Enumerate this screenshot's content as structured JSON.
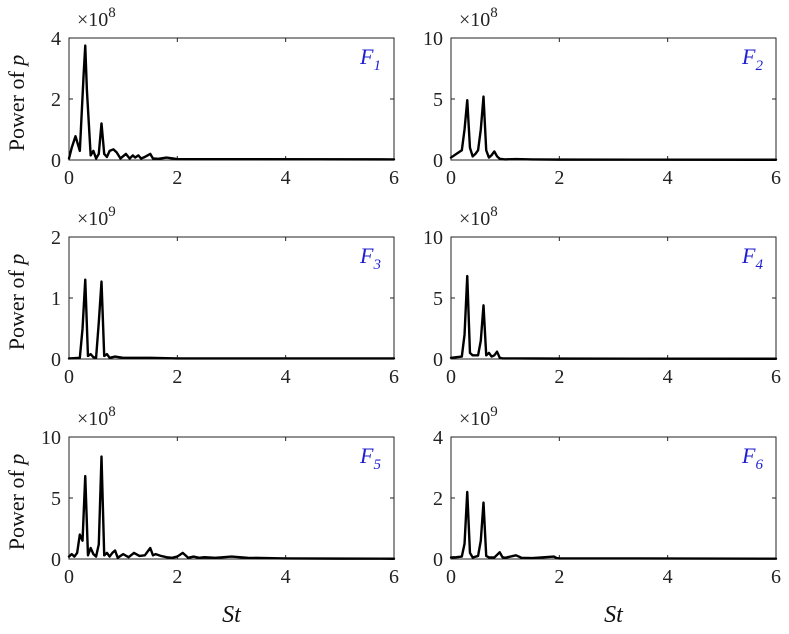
{
  "colors": {
    "line": "#000000",
    "axis": "#222222",
    "panel_label": "#1f1fd0"
  },
  "chart_data": [
    {
      "type": "line",
      "panel_label": "F",
      "panel_sub": "1",
      "ylabel": "Power of",
      "ylabel_var": "p",
      "xlabel": "",
      "ylim": [
        0,
        4
      ],
      "yticks": [
        "0",
        "2",
        "4"
      ],
      "y_exponent_prefix": "×10",
      "y_exponent": "8",
      "xlim": [
        0,
        6
      ],
      "xticks": [
        "0",
        "2",
        "4",
        "6"
      ],
      "series": [
        {
          "x": [
            0,
            0.05,
            0.12,
            0.2,
            0.27,
            0.3,
            0.33,
            0.4,
            0.45,
            0.5,
            0.55,
            0.6,
            0.65,
            0.7,
            0.75,
            0.82,
            0.88,
            0.95,
            1.05,
            1.12,
            1.18,
            1.22,
            1.28,
            1.33,
            1.4,
            1.45,
            1.5,
            1.55,
            1.65,
            1.8,
            2,
            6
          ],
          "y": [
            0.05,
            0.4,
            0.78,
            0.3,
            2.8,
            3.75,
            2.3,
            0.15,
            0.3,
            0.05,
            0.2,
            1.2,
            0.2,
            0.1,
            0.3,
            0.35,
            0.25,
            0.05,
            0.2,
            0.05,
            0.15,
            0.08,
            0.15,
            0.05,
            0.1,
            0.15,
            0.2,
            0.05,
            0.04,
            0.08,
            0.03,
            0.02
          ]
        }
      ]
    },
    {
      "type": "line",
      "panel_label": "F",
      "panel_sub": "2",
      "ylabel": "",
      "ylabel_var": "",
      "xlabel": "",
      "ylim": [
        0,
        10
      ],
      "yticks": [
        "0",
        "5",
        "10"
      ],
      "y_exponent_prefix": "×10",
      "y_exponent": "8",
      "xlim": [
        0,
        6
      ],
      "xticks": [
        "0",
        "2",
        "4",
        "6"
      ],
      "series": [
        {
          "x": [
            0,
            0.1,
            0.2,
            0.25,
            0.3,
            0.35,
            0.4,
            0.45,
            0.5,
            0.55,
            0.6,
            0.65,
            0.7,
            0.75,
            0.8,
            0.85,
            0.9,
            1.0,
            1.2,
            1.5,
            2,
            6
          ],
          "y": [
            0.2,
            0.5,
            0.8,
            2.5,
            4.9,
            1.0,
            0.3,
            0.5,
            0.8,
            2.5,
            5.2,
            0.8,
            0.2,
            0.4,
            0.7,
            0.3,
            0.1,
            0.05,
            0.08,
            0.05,
            0.03,
            0.02
          ]
        }
      ]
    },
    {
      "type": "line",
      "panel_label": "F",
      "panel_sub": "3",
      "ylabel": "Power of",
      "ylabel_var": "p",
      "xlabel": "",
      "ylim": [
        0,
        2
      ],
      "yticks": [
        "0",
        "1",
        "2"
      ],
      "y_exponent_prefix": "×10",
      "y_exponent": "9",
      "xlim": [
        0,
        6
      ],
      "xticks": [
        "0",
        "2",
        "4",
        "6"
      ],
      "series": [
        {
          "x": [
            0,
            0.2,
            0.25,
            0.3,
            0.35,
            0.4,
            0.45,
            0.5,
            0.55,
            0.6,
            0.65,
            0.7,
            0.75,
            0.85,
            1.0,
            1.5,
            2,
            6
          ],
          "y": [
            0.01,
            0.02,
            0.5,
            1.3,
            0.05,
            0.08,
            0.03,
            0.02,
            0.6,
            1.27,
            0.05,
            0.08,
            0.02,
            0.04,
            0.02,
            0.02,
            0.01,
            0.01
          ]
        }
      ]
    },
    {
      "type": "line",
      "panel_label": "F",
      "panel_sub": "4",
      "ylabel": "",
      "ylabel_var": "",
      "xlabel": "",
      "ylim": [
        0,
        10
      ],
      "yticks": [
        "0",
        "5",
        "10"
      ],
      "y_exponent_prefix": "×10",
      "y_exponent": "8",
      "xlim": [
        0,
        6
      ],
      "xticks": [
        "0",
        "2",
        "4",
        "6"
      ],
      "series": [
        {
          "x": [
            0,
            0.2,
            0.25,
            0.3,
            0.35,
            0.4,
            0.5,
            0.55,
            0.6,
            0.65,
            0.7,
            0.75,
            0.8,
            0.85,
            0.9,
            0.95,
            1.0,
            1.2,
            1.5,
            2,
            6
          ],
          "y": [
            0.1,
            0.2,
            2.0,
            6.8,
            0.5,
            0.3,
            0.3,
            1.5,
            4.4,
            0.3,
            0.5,
            0.2,
            0.3,
            0.6,
            0.1,
            0.05,
            0.05,
            0.05,
            0.04,
            0.03,
            0.02
          ]
        }
      ]
    },
    {
      "type": "line",
      "panel_label": "F",
      "panel_sub": "5",
      "ylabel": "Power of",
      "ylabel_var": "p",
      "xlabel": "St",
      "ylim": [
        0,
        10
      ],
      "yticks": [
        "0",
        "5",
        "10"
      ],
      "y_exponent_prefix": "×10",
      "y_exponent": "8",
      "xlim": [
        0,
        6
      ],
      "xticks": [
        "0",
        "2",
        "4",
        "6"
      ],
      "series": [
        {
          "x": [
            0,
            0.05,
            0.1,
            0.15,
            0.2,
            0.25,
            0.3,
            0.35,
            0.4,
            0.45,
            0.5,
            0.55,
            0.6,
            0.65,
            0.7,
            0.75,
            0.8,
            0.85,
            0.9,
            1.0,
            1.1,
            1.2,
            1.3,
            1.4,
            1.5,
            1.55,
            1.6,
            1.7,
            1.8,
            1.9,
            2.0,
            2.1,
            2.2,
            2.3,
            2.4,
            2.5,
            2.7,
            3.0,
            3.3,
            4.0,
            5.0,
            6.0
          ],
          "y": [
            0.2,
            0.4,
            0.2,
            0.5,
            2.0,
            1.5,
            6.8,
            0.3,
            0.9,
            0.4,
            0.2,
            1.2,
            8.4,
            0.3,
            0.5,
            0.2,
            0.5,
            0.7,
            0.1,
            0.4,
            0.15,
            0.5,
            0.25,
            0.3,
            0.9,
            0.3,
            0.4,
            0.25,
            0.15,
            0.1,
            0.2,
            0.5,
            0.1,
            0.2,
            0.1,
            0.15,
            0.1,
            0.2,
            0.1,
            0.05,
            0.03,
            0.02
          ]
        }
      ]
    },
    {
      "type": "line",
      "panel_label": "F",
      "panel_sub": "6",
      "ylabel": "",
      "ylabel_var": "",
      "xlabel": "St",
      "ylim": [
        0,
        4
      ],
      "yticks": [
        "0",
        "2",
        "4"
      ],
      "y_exponent_prefix": "×10",
      "y_exponent": "9",
      "xlim": [
        0,
        6
      ],
      "xticks": [
        "0",
        "2",
        "4",
        "6"
      ],
      "series": [
        {
          "x": [
            0,
            0.1,
            0.2,
            0.25,
            0.3,
            0.35,
            0.4,
            0.5,
            0.55,
            0.6,
            0.65,
            0.7,
            0.8,
            0.9,
            0.95,
            1.0,
            1.2,
            1.3,
            1.5,
            1.9,
            1.95,
            2.0,
            2.5,
            6.0
          ],
          "y": [
            0.05,
            0.06,
            0.08,
            0.5,
            2.2,
            0.2,
            0.05,
            0.1,
            0.6,
            1.85,
            0.1,
            0.05,
            0.05,
            0.22,
            0.06,
            0.04,
            0.12,
            0.04,
            0.03,
            0.08,
            0.03,
            0.02,
            0.02,
            0.01
          ]
        }
      ]
    }
  ]
}
